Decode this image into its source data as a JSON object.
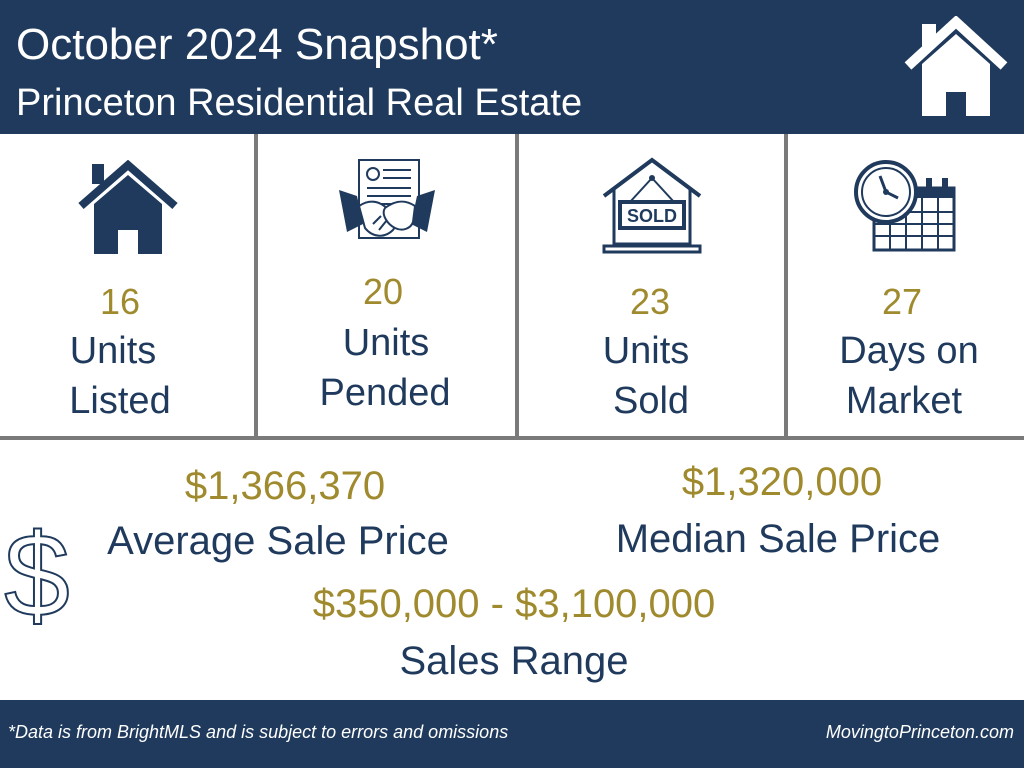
{
  "header": {
    "title": "October 2024 Snapshot*",
    "subtitle": "Princeton Residential Real Estate",
    "logo_icon": "house-outline-icon"
  },
  "stats": [
    {
      "icon": "house-icon",
      "value": "16",
      "label_line1": "Units",
      "label_line2": "Listed"
    },
    {
      "icon": "handshake-contract-icon",
      "value": "20",
      "label_line1": "Units",
      "label_line2": "Pended"
    },
    {
      "icon": "sold-sign-icon",
      "sign_text": "SOLD",
      "value": "23",
      "label_line1": "Units",
      "label_line2": "Sold"
    },
    {
      "icon": "clock-calendar-icon",
      "value": "27",
      "label_line1": "Days on",
      "label_line2": "Market"
    }
  ],
  "prices": {
    "average": {
      "value": "$1,366,370",
      "label": "Average Sale Price"
    },
    "median": {
      "value": "$1,320,000",
      "label": "Median Sale Price"
    },
    "range": {
      "value": "$350,000 - $3,100,000",
      "label": "Sales Range"
    },
    "dollar_icon": "dollar-sign-icon"
  },
  "footer": {
    "disclaimer": "*Data is from BrightMLS and is subject to errors and omissions",
    "website": "MovingtoPrinceton.com"
  },
  "colors": {
    "navy": "#1f3a5c",
    "gold": "#a08a2e",
    "divider": "#7a7a7a"
  }
}
